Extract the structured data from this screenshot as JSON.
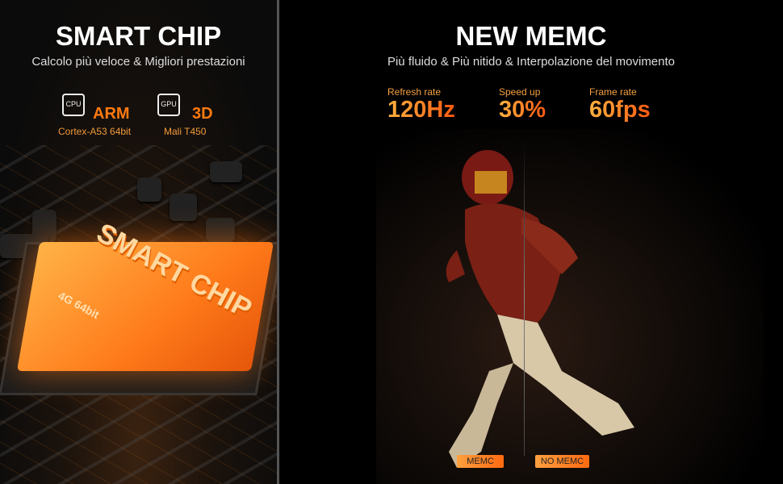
{
  "left": {
    "title": "SMART CHIP",
    "subtitle": "Calcolo più veloce & Migliori prestazioni",
    "specs": [
      {
        "icon": "cpu-icon",
        "icon_label": "CPU",
        "name": "ARM",
        "detail": "Cortex-A53 64bit"
      },
      {
        "icon": "gpu-icon",
        "icon_label": "GPU",
        "name": "3D",
        "detail": "Mali T450"
      }
    ],
    "chip": {
      "text": "SMART CHIP",
      "subtext": "4G 64bit"
    }
  },
  "right": {
    "title": "NEW MEMC",
    "subtitle": "Più fluido & Più nitido & Interpolazione del movimento",
    "stats": [
      {
        "label": "Refresh rate",
        "value": "120Hz"
      },
      {
        "label": "Speed up",
        "value": "30%"
      },
      {
        "label": "Frame rate",
        "value": "60fps"
      }
    ],
    "badges": {
      "left": "MEMC",
      "right": "NO MEMC"
    }
  },
  "colors": {
    "accent": "#ff7a10",
    "background": "#000000"
  }
}
